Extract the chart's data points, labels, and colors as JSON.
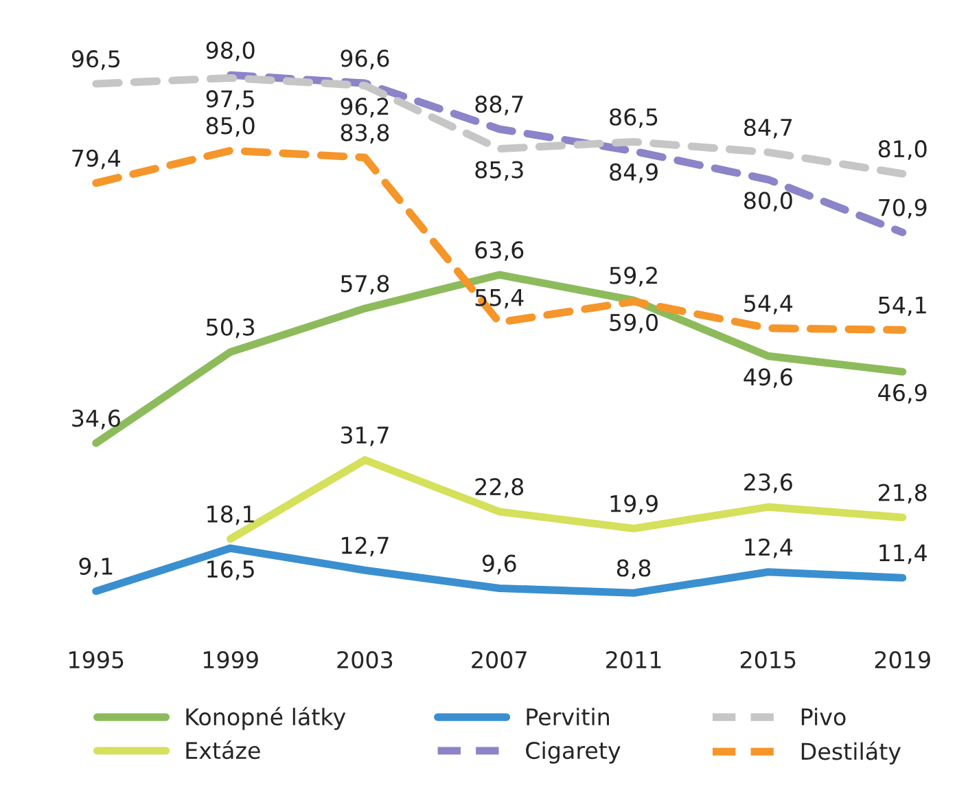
{
  "chart_data": {
    "type": "line",
    "categories": [
      "1995",
      "1999",
      "2003",
      "2007",
      "2011",
      "2015",
      "2019"
    ],
    "series": [
      {
        "name": "Konopné látky",
        "color": "#8dbb5c",
        "line_style": "solid",
        "values": [
          34.6,
          50.3,
          57.8,
          63.6,
          59.2,
          49.6,
          46.9
        ],
        "value_labels": [
          "34,6",
          "50,3",
          "57,8",
          "63,6",
          "59,2",
          "49,6",
          "46,9"
        ]
      },
      {
        "name": "Extáze",
        "color": "#d5e05b",
        "line_style": "solid",
        "values": [
          null,
          18.1,
          31.7,
          22.8,
          19.9,
          23.6,
          21.8
        ],
        "value_labels": [
          null,
          "18,1",
          "31,7",
          "22,8",
          "19,9",
          "23,6",
          "21,8"
        ]
      },
      {
        "name": "Pervitin",
        "color": "#3a8fd0",
        "line_style": "solid",
        "values": [
          9.1,
          16.5,
          12.7,
          9.6,
          8.8,
          12.4,
          11.4
        ],
        "value_labels": [
          "9,1",
          "16,5",
          "12,7",
          "9,6",
          "8,8",
          "12,4",
          "11,4"
        ]
      },
      {
        "name": "Cigarety",
        "color": "#8b84c8",
        "line_style": "dashed",
        "values": [
          null,
          98.0,
          96.6,
          88.7,
          84.9,
          80.0,
          70.9
        ],
        "value_labels": [
          null,
          "98,0",
          "96,6",
          "88,7",
          "84,9",
          "80,0",
          "70,9"
        ]
      },
      {
        "name": "Pivo",
        "color": "#c6c6c6",
        "line_style": "dashed",
        "values": [
          96.5,
          97.5,
          96.2,
          85.3,
          86.5,
          84.7,
          81.0
        ],
        "value_labels": [
          "96,5",
          "97,5",
          "96,2",
          "85,3",
          "86,5",
          "84,7",
          "81,0"
        ]
      },
      {
        "name": "Destiláty",
        "color": "#f5962a",
        "line_style": "dashed",
        "values": [
          79.4,
          85.0,
          83.8,
          55.4,
          59.0,
          54.4,
          54.1
        ],
        "value_labels": [
          "79,4",
          "85,0",
          "83,8",
          "55,4",
          "59,0",
          "54,4",
          "54,1"
        ]
      }
    ],
    "marker": "none",
    "grid": false,
    "legend": "bottom",
    "tick_labels": "x"
  }
}
